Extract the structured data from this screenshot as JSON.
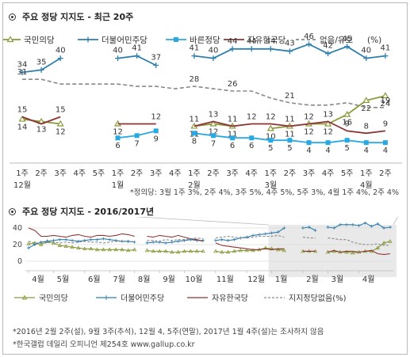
{
  "top_title": "주요 정당 지지도 - 최근 20주",
  "bottom_title": "주요 정당 지지도 - 2016/2017년",
  "pct_label": "(%)",
  "footnote_jd": "*정의당: 3월 1주 3%, 2주 4%, 3주 5%, 4주 5%, 5주 3%, 4월 1주 4%, 2주 4%",
  "note1": "*2016년 2월 2주(설), 9월 3주(추석), 12월 4, 5주(연말), 2017년 1월 4주(설)는 조사하지 않음",
  "note2": "*한국갤럽 데일리 오피니언 제254호 www.gallup.co.kr",
  "colors": {
    "kmu": "#8a9a3a",
    "dm": "#2e7fae",
    "bj": "#29a9e1",
    "jh": "#8c3434",
    "none": "#888888"
  },
  "chart_data": [
    {
      "type": "line",
      "title": "주요 정당 지지도 - 최근 20주",
      "ylim": [
        0,
        50
      ],
      "categories": [
        "1주",
        "2주",
        "3주",
        "4주",
        "5주",
        "1주",
        "2주",
        "3주",
        "4주",
        "1주",
        "2주",
        "3주",
        "4주",
        "1주",
        "2주",
        "3주",
        "4주",
        "5주",
        "1주",
        "2주"
      ],
      "month_labels": [
        {
          "index": 0,
          "label": "12월"
        },
        {
          "index": 5,
          "label": "1월"
        },
        {
          "index": 9,
          "label": "2월"
        },
        {
          "index": 13,
          "label": "3월"
        },
        {
          "index": 18,
          "label": "4월"
        }
      ],
      "series": [
        {
          "name": "국민의당",
          "color_key": "kmu",
          "marker": "triangle",
          "values": [
            14,
            13,
            12,
            null,
            null,
            12,
            null,
            null,
            null,
            11,
            12,
            11,
            null,
            10,
            11,
            12,
            12,
            16,
            22,
            24
          ],
          "labels": [
            "14",
            "13",
            "12",
            null,
            null,
            "12",
            null,
            null,
            null,
            "11",
            "12",
            "11",
            null,
            "10",
            "11",
            "12",
            "12",
            "16",
            "22",
            "24"
          ]
        },
        {
          "name": "더불어민주당",
          "color_key": "dm",
          "marker": "plus",
          "values": [
            34,
            35,
            40,
            null,
            null,
            40,
            41,
            37,
            null,
            41,
            40,
            44,
            44,
            44,
            43,
            46,
            42,
            45,
            40,
            41
          ],
          "labels": [
            "34",
            "35",
            "40",
            null,
            null,
            "40",
            "41",
            "37",
            null,
            "41",
            "40",
            "44",
            "44",
            "44",
            "43",
            "46",
            "42",
            "45",
            "40",
            "41"
          ]
        },
        {
          "name": "바른정당",
          "color_key": "bj",
          "marker": "square",
          "values": [
            null,
            null,
            null,
            null,
            null,
            6,
            7,
            9,
            null,
            8,
            7,
            6,
            6,
            5,
            5,
            4,
            4,
            5,
            4,
            4
          ],
          "labels": [
            null,
            null,
            null,
            null,
            null,
            "6",
            "7",
            "9",
            null,
            "8",
            "7",
            "6",
            "6",
            "5",
            "5",
            "4",
            "4",
            "5",
            "4",
            "4"
          ]
        },
        {
          "name": "자유한국당",
          "color_key": "jh",
          "marker": "none",
          "values": [
            15,
            12,
            15,
            null,
            null,
            12,
            12,
            12,
            null,
            11,
            13,
            11,
            12,
            12,
            11,
            12,
            13,
            9,
            8,
            9
          ],
          "labels": [
            "15",
            null,
            "15",
            null,
            null,
            null,
            null,
            "12",
            null,
            "11",
            "13",
            "11",
            "12",
            "12",
            "11",
            "12",
            "13",
            "9",
            "8",
            "9"
          ]
        },
        {
          "name": "없음/유보",
          "color_key": "none",
          "marker": "none",
          "dashed": true,
          "values": [
            31,
            31,
            29,
            29,
            29,
            29,
            28,
            28,
            27,
            28,
            27,
            26,
            26,
            23,
            21,
            20,
            20,
            21,
            19,
            19
          ],
          "labels": [
            "31",
            null,
            null,
            null,
            null,
            null,
            null,
            null,
            null,
            "28",
            null,
            "26",
            null,
            null,
            "21",
            null,
            null,
            null,
            null,
            "19"
          ]
        }
      ]
    },
    {
      "type": "line",
      "title": "주요 정당 지지도 - 2016/2017년",
      "ylim": [
        0,
        40
      ],
      "yticks": [
        0,
        20,
        40
      ],
      "x_month_labels": [
        "4월",
        "5월",
        "6월",
        "7월",
        "8월",
        "9월",
        "10월",
        "11월",
        "12월",
        "1월",
        "2월",
        "3월",
        "4월"
      ],
      "series": [
        {
          "name": "국민의당",
          "color_key": "kmu",
          "marker": "triangle",
          "values": [
            21,
            22,
            20,
            24,
            22,
            19,
            18,
            17,
            16,
            15,
            15,
            14,
            14,
            14,
            14,
            14,
            13,
            14,
            null,
            13,
            12,
            12,
            12,
            11,
            11,
            12,
            12,
            12,
            12,
            null,
            12,
            11,
            11,
            12,
            13,
            13,
            13,
            14,
            16,
            15,
            14,
            13,
            null,
            null,
            12,
            12,
            12,
            null,
            11,
            12,
            11,
            11,
            10,
            11,
            12,
            12,
            16,
            22,
            24
          ]
        },
        {
          "name": "더불어민주당",
          "color_key": "dm",
          "marker": "plus",
          "values": [
            16,
            20,
            23,
            24,
            25,
            26,
            26,
            25,
            24,
            25,
            26,
            26,
            27,
            26,
            25,
            24,
            24,
            23,
            null,
            22,
            23,
            23,
            22,
            23,
            24,
            25,
            26,
            25,
            25,
            null,
            25,
            26,
            25,
            26,
            28,
            29,
            31,
            32,
            33,
            34,
            35,
            40,
            null,
            null,
            40,
            41,
            37,
            null,
            41,
            40,
            44,
            44,
            44,
            43,
            46,
            42,
            45,
            40,
            41
          ]
        },
        {
          "name": "자유한국당",
          "color_key": "jh",
          "marker": "none",
          "values": [
            40,
            37,
            30,
            30,
            31,
            30,
            29,
            31,
            32,
            30,
            29,
            31,
            31,
            30,
            31,
            33,
            32,
            30,
            null,
            30,
            29,
            31,
            30,
            29,
            31,
            29,
            27,
            26,
            24,
            null,
            22,
            19,
            18,
            17,
            16,
            15,
            14,
            14,
            15,
            14,
            15,
            15,
            null,
            null,
            12,
            12,
            12,
            null,
            11,
            13,
            11,
            12,
            12,
            11,
            12,
            13,
            9,
            8,
            9
          ]
        },
        {
          "name": "지지정당없음(%)",
          "color_key": "none",
          "marker": "none",
          "dashed": true,
          "values": [
            24,
            22,
            22,
            22,
            23,
            22,
            23,
            22,
            23,
            24,
            23,
            23,
            22,
            23,
            24,
            24,
            23,
            24,
            null,
            25,
            25,
            24,
            26,
            25,
            26,
            26,
            27,
            28,
            27,
            null,
            28,
            29,
            30,
            29,
            28,
            28,
            29,
            30,
            30,
            30,
            31,
            29,
            null,
            null,
            29,
            28,
            28,
            null,
            28,
            27,
            26,
            26,
            23,
            21,
            20,
            20,
            21,
            19,
            19
          ]
        }
      ]
    }
  ]
}
